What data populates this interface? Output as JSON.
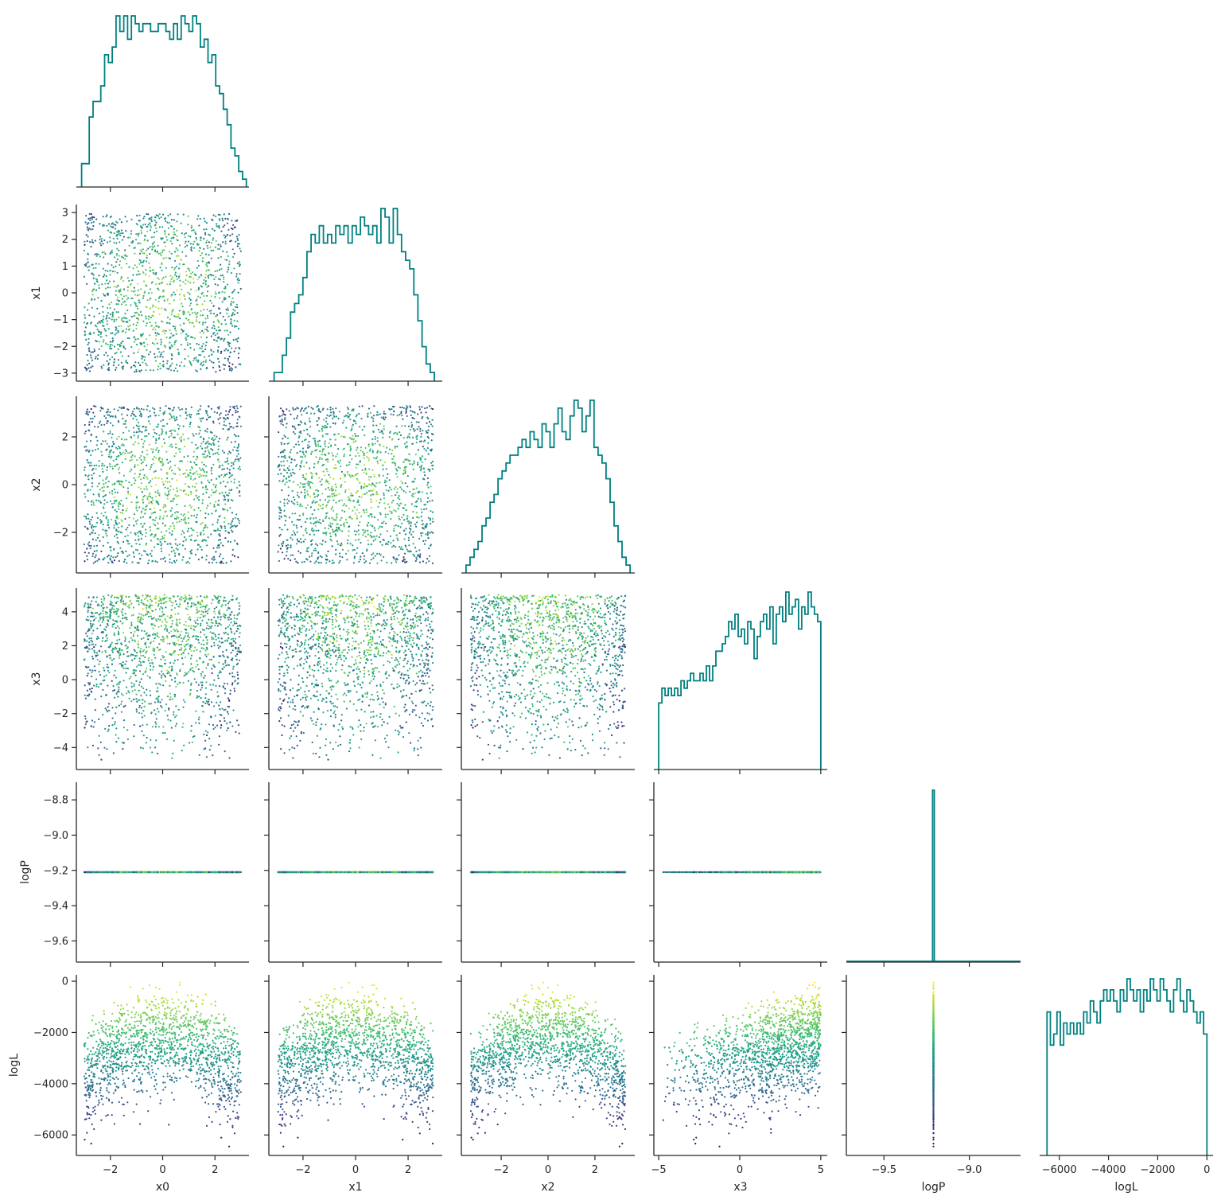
{
  "chart_data": {
    "type": "scatter",
    "title": "",
    "variables": [
      {
        "name": "x0",
        "lim": [
          -3.3,
          3.3
        ],
        "ticks": [
          -2,
          0,
          2
        ],
        "tick_labels": [
          "−2",
          "0",
          "2"
        ]
      },
      {
        "name": "x1",
        "lim": [
          -3.3,
          3.3
        ],
        "ticks": [
          -3,
          -2,
          -1,
          0,
          1,
          2,
          3
        ],
        "tick_labels": [
          "−3",
          "−2",
          "−1",
          "0",
          "1",
          "2",
          "3"
        ],
        "x_ticks": [
          -2,
          0,
          2
        ],
        "x_tick_labels": [
          "−2",
          "0",
          "2"
        ]
      },
      {
        "name": "x2",
        "lim": [
          -3.7,
          3.7
        ],
        "ticks": [
          -2,
          0,
          2
        ],
        "tick_labels": [
          "−2",
          "0",
          "2"
        ]
      },
      {
        "name": "x3",
        "lim": [
          -5.3,
          5.4
        ],
        "ticks": [
          -4,
          -2,
          0,
          2,
          4
        ],
        "tick_labels": [
          "−4",
          "−2",
          "0",
          "2",
          "4"
        ],
        "x_ticks": [
          -5,
          0,
          5
        ],
        "x_tick_labels": [
          "−5",
          "0",
          "5"
        ]
      },
      {
        "name": "logP",
        "lim": [
          -9.72,
          -8.7
        ],
        "ticks": [
          -9.6,
          -9.4,
          -9.2,
          -9.0,
          -8.8
        ],
        "tick_labels": [
          "−9.6",
          "−9.4",
          "−9.2",
          "−9.0",
          "−8.8"
        ],
        "x_ticks": [
          -9.5,
          -9.0
        ],
        "x_tick_labels": [
          "−9.5",
          "−9.0"
        ]
      },
      {
        "name": "logL",
        "lim": [
          -6800,
          250
        ],
        "ticks": [
          -6000,
          -4000,
          -2000,
          0
        ],
        "tick_labels": [
          "−6000",
          "−4000",
          "−2000",
          "0"
        ]
      }
    ],
    "logP_constant": -9.21,
    "n_points": 1500,
    "histogram_color": "#008080",
    "colormap": "viridis (colored by logL)",
    "histograms": {
      "x0": {
        "range": [
          -3.1,
          3.2
        ],
        "counts": [
          3,
          3,
          9,
          11,
          11,
          13,
          17,
          16,
          18,
          22,
          20,
          22,
          19,
          22,
          21,
          20,
          21,
          21,
          20,
          20,
          21,
          21,
          20,
          19,
          21,
          19,
          22,
          21,
          20,
          22,
          21,
          18,
          19,
          16,
          17,
          13,
          12,
          10,
          8,
          5,
          4,
          2,
          1
        ]
      },
      "x1": {
        "range": [
          -3.1,
          3.0
        ],
        "counts": [
          1,
          1,
          3,
          5,
          8,
          9,
          10,
          12,
          15,
          17,
          16,
          18,
          16,
          17,
          16,
          18,
          17,
          18,
          16,
          18,
          17,
          19,
          18,
          17,
          18,
          16,
          20,
          19,
          16,
          20,
          17,
          15,
          14,
          13,
          10,
          7,
          4,
          2,
          1
        ]
      },
      "x2": {
        "range": [
          -3.5,
          3.5
        ],
        "counts": [
          1,
          2,
          3,
          4,
          6,
          7,
          9,
          10,
          12,
          13,
          14,
          15,
          15,
          16,
          17,
          16,
          18,
          17,
          16,
          19,
          18,
          16,
          19,
          21,
          18,
          17,
          20,
          22,
          21,
          18,
          20,
          22,
          16,
          15,
          14,
          12,
          9,
          6,
          4,
          2,
          1
        ]
      },
      "x3": {
        "range": [
          -5.0,
          5.0
        ],
        "counts": [
          9,
          11,
          10,
          11,
          10,
          11,
          10,
          12,
          11,
          12,
          13,
          12,
          12,
          13,
          12,
          14,
          12,
          14,
          16,
          16,
          17,
          18,
          20,
          19,
          21,
          18,
          19,
          17,
          20,
          19,
          15,
          18,
          20,
          21,
          19,
          22,
          17,
          21,
          22,
          20,
          24,
          21,
          22,
          23,
          19,
          22,
          21,
          24,
          22,
          21,
          20
        ]
      },
      "logP": {
        "range": [
          -9.22,
          -9.2
        ],
        "counts": [
          0,
          1500,
          0
        ]
      },
      "logL": {
        "range": [
          -6500,
          0
        ],
        "counts": [
          13,
          10,
          11,
          13,
          10,
          12,
          11,
          12,
          11,
          12,
          11,
          13,
          12,
          14,
          13,
          12,
          14,
          15,
          14,
          15,
          14,
          13,
          15,
          14,
          16,
          15,
          14,
          15,
          13,
          15,
          14,
          16,
          15,
          14,
          16,
          15,
          14,
          13,
          15,
          16,
          14,
          13,
          15,
          14,
          13,
          12,
          13,
          11
        ]
      }
    },
    "panels": "corner (lower-triangular) pair plot: diagonal = step histograms, lower triangle = scatter"
  }
}
